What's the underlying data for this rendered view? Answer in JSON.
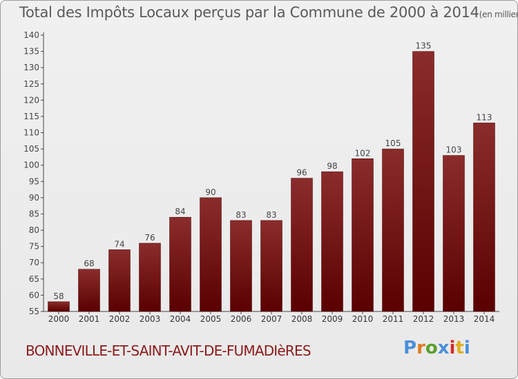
{
  "header": {
    "title": "Total des Impôts Locaux perçus par la Commune de 2000 à 2014",
    "unit": "(en milliers d'€)"
  },
  "footer": {
    "commune": "BONNEVILLE-ET-SAINT-AVIT-DE-FUMADIèRES",
    "logo_text": "Proxiti"
  },
  "colors": {
    "bar_top": "#8b2c2c",
    "bar_bottom": "#5a0000",
    "logo": [
      "#4a90d9",
      "#e07a20",
      "#5aa02c",
      "#4a90d9",
      "#d62b2b",
      "#e0b020",
      "#4a90d9"
    ]
  },
  "chart_data": {
    "type": "bar",
    "title": "Total des Impôts Locaux perçus par la Commune de 2000 à 2014",
    "xlabel": "",
    "ylabel": "",
    "categories": [
      "2000",
      "2001",
      "2002",
      "2003",
      "2004",
      "2005",
      "2006",
      "2007",
      "2008",
      "2009",
      "2010",
      "2011",
      "2012",
      "2013",
      "2014"
    ],
    "values": [
      58,
      68,
      74,
      76,
      84,
      90,
      83,
      83,
      96,
      98,
      102,
      105,
      135,
      103,
      113
    ],
    "ylim": [
      55,
      140
    ],
    "yticks": [
      55,
      60,
      65,
      70,
      75,
      80,
      85,
      90,
      95,
      100,
      105,
      110,
      115,
      120,
      125,
      130,
      135,
      140
    ],
    "grid": false,
    "legend": "none"
  }
}
